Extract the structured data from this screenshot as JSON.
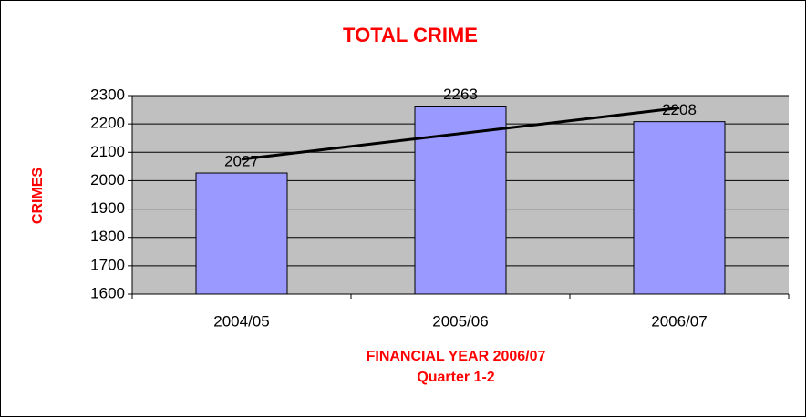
{
  "chart_data": {
    "type": "bar",
    "title": "TOTAL CRIME",
    "xlabel": [
      "FINANCIAL YEAR 2006/07",
      "Quarter 1-2"
    ],
    "ylabel": "CRIMES",
    "categories": [
      "2004/05",
      "2005/06",
      "2006/07"
    ],
    "values": [
      2027,
      2263,
      2208
    ],
    "color": "#9999ff",
    "plot_background": "#c0c0c0",
    "grid": true,
    "trendline": "linear",
    "ylim": [
      1600,
      2300
    ],
    "yticks": [
      1600,
      1700,
      1800,
      1900,
      2000,
      2100,
      2200,
      2300
    ]
  }
}
